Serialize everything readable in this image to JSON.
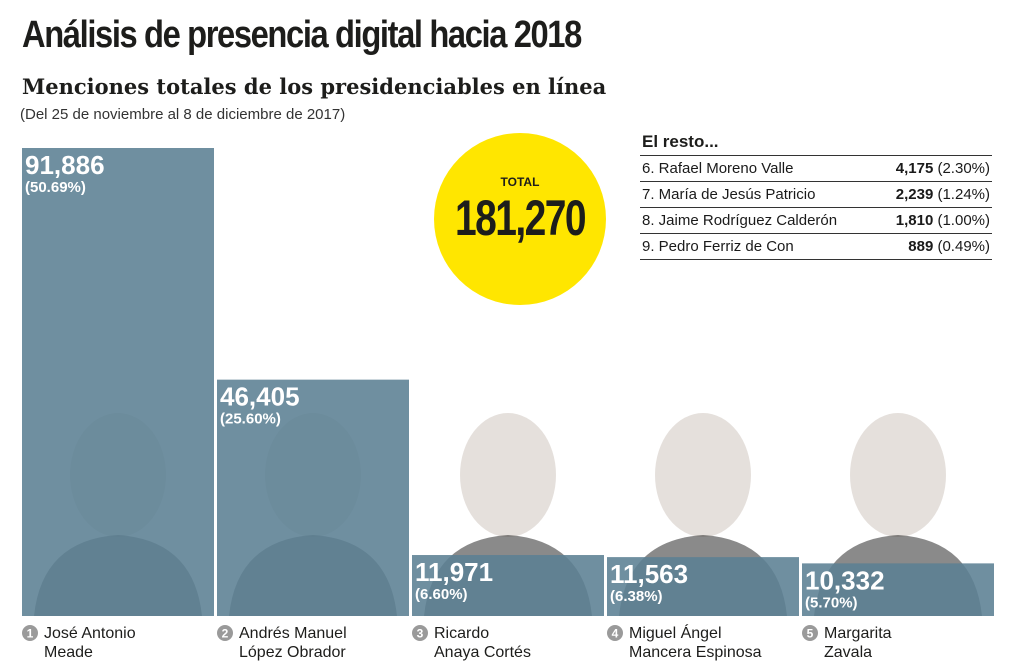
{
  "header": {
    "title": "Análisis de presencia digital hacia 2018",
    "subtitle": "Menciones totales de los presidenciables en línea",
    "date_range": "(Del 25 de noviembre al 8 de diciembre de 2017)"
  },
  "total": {
    "label": "TOTAL",
    "value": "181,270"
  },
  "rest": {
    "title": "El resto...",
    "rows": [
      {
        "name": "6. Rafael Moreno Valle",
        "value": "4,175",
        "pct": "(2.30%)"
      },
      {
        "name": "7. María de Jesús Patricio",
        "value": "2,239",
        "pct": "(1.24%)"
      },
      {
        "name": "8. Jaime Rodríguez Calderón",
        "value": "1,810",
        "pct": "(1.00%)"
      },
      {
        "name": "9. Pedro Ferriz de Con",
        "value": "889",
        "pct": "(0.49%)"
      }
    ]
  },
  "chart_data": {
    "type": "bar",
    "categories": [
      "José Antonio Meade",
      "Andrés Manuel López Obrador",
      "Ricardo Anaya Cortés",
      "Miguel Ángel Mancera Espinosa",
      "Margarita Zavala"
    ],
    "values": [
      91886,
      46405,
      11971,
      11563,
      10332
    ],
    "value_labels": [
      "91,886",
      "46,405",
      "11,971",
      "11,563",
      "10,332"
    ],
    "pct_labels": [
      "(50.69%)",
      "(25.60%)",
      "(6.60%)",
      "(6.38%)",
      "(5.70%)"
    ],
    "ranks": [
      "1",
      "2",
      "3",
      "4",
      "5"
    ],
    "name_lines": [
      [
        "José Antonio",
        "Meade"
      ],
      [
        "Andrés Manuel",
        "López Obrador"
      ],
      [
        "Ricardo",
        "Anaya Cortés"
      ],
      [
        "Miguel Ángel",
        "Mancera Espinosa"
      ],
      [
        "Margarita",
        "Zavala"
      ]
    ],
    "ylim": [
      0,
      91886
    ],
    "bar_color": "#5b7f93",
    "accent_color": "#ffe600"
  }
}
